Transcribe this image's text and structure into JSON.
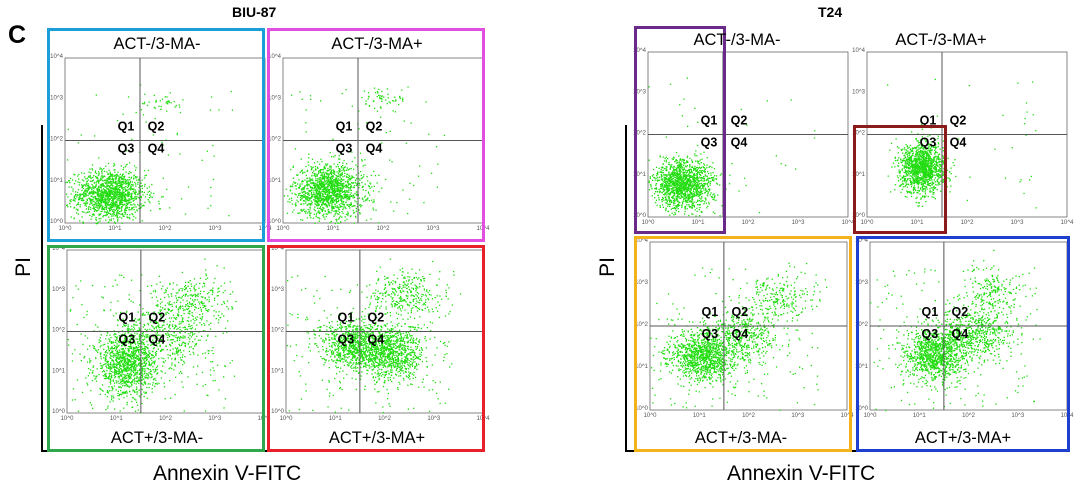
{
  "figure": {
    "panel_letter": "C",
    "y_axis_label": "PI",
    "x_axis_label": "Annexin V-FITC",
    "frame_colors": {
      "blue": "#1b9fd8",
      "magenta": "#e24ee0",
      "green": "#2ea84a",
      "red": "#e8202a",
      "purple": "#6a2a8a",
      "darkred": "#8b1a1a",
      "yellow": "#f4b31b",
      "royalblue": "#1f3fd1"
    },
    "dot_color": "#22dd11"
  },
  "chart_data": [
    {
      "type": "scatter",
      "group": "BIU-87",
      "condition": "ACT-/3-MA-",
      "xlim_log10": [
        0,
        4
      ],
      "ylim_log10": [
        0,
        4
      ],
      "x_scale": "log",
      "y_scale": "log",
      "x_ticks": [
        "10^0",
        "10^1",
        "10^2",
        "10^3",
        "10^4"
      ],
      "y_ticks": [
        "10^0",
        "10^1",
        "10^2",
        "10^3",
        "10^4"
      ],
      "quadrant_gate_log10": {
        "x": 1.5,
        "y": 2.0
      },
      "quadrants": [
        "Q1",
        "Q2",
        "Q3",
        "Q4"
      ],
      "clusters": [
        {
          "center_log10": [
            0.9,
            0.7
          ],
          "spread_log10": [
            0.35,
            0.3
          ],
          "points": 1400
        },
        {
          "center_log10": [
            1.9,
            2.9
          ],
          "spread_log10": [
            0.25,
            0.15
          ],
          "points": 40
        }
      ],
      "scatter_noise_points": 60
    },
    {
      "type": "scatter",
      "group": "BIU-87",
      "condition": "ACT-/3-MA+",
      "xlim_log10": [
        0,
        4
      ],
      "ylim_log10": [
        0,
        4
      ],
      "x_scale": "log",
      "y_scale": "log",
      "x_ticks": [
        "10^0",
        "10^1",
        "10^2",
        "10^3",
        "10^4"
      ],
      "y_ticks": [
        "10^0",
        "10^1",
        "10^2",
        "10^3",
        "10^4"
      ],
      "quadrant_gate_log10": {
        "x": 1.5,
        "y": 2.0
      },
      "quadrants": [
        "Q1",
        "Q2",
        "Q3",
        "Q4"
      ],
      "clusters": [
        {
          "center_log10": [
            0.9,
            0.8
          ],
          "spread_log10": [
            0.35,
            0.32
          ],
          "points": 1400
        },
        {
          "center_log10": [
            2.0,
            3.0
          ],
          "spread_log10": [
            0.25,
            0.15
          ],
          "points": 60
        }
      ],
      "scatter_noise_points": 70
    },
    {
      "type": "scatter",
      "group": "BIU-87",
      "condition": "ACT+/3-MA-",
      "xlim_log10": [
        0,
        4
      ],
      "ylim_log10": [
        0,
        4
      ],
      "x_scale": "log",
      "y_scale": "log",
      "x_ticks": [
        "10^0",
        "10^1",
        "10^2",
        "10^3",
        "10^4"
      ],
      "y_ticks": [
        "10^0",
        "10^1",
        "10^2",
        "10^3",
        "10^4"
      ],
      "quadrant_gate_log10": {
        "x": 1.5,
        "y": 2.0
      },
      "quadrants": [
        "Q1",
        "Q2",
        "Q3",
        "Q4"
      ],
      "clusters": [
        {
          "center_log10": [
            1.2,
            1.2
          ],
          "spread_log10": [
            0.3,
            0.4
          ],
          "points": 1100
        },
        {
          "center_log10": [
            2.0,
            1.9
          ],
          "spread_log10": [
            0.5,
            0.4
          ],
          "points": 500
        },
        {
          "center_log10": [
            2.5,
            2.8
          ],
          "spread_log10": [
            0.4,
            0.3
          ],
          "points": 250
        }
      ],
      "scatter_noise_points": 150
    },
    {
      "type": "scatter",
      "group": "BIU-87",
      "condition": "ACT+/3-MA+",
      "xlim_log10": [
        0,
        4
      ],
      "ylim_log10": [
        0,
        4
      ],
      "x_scale": "log",
      "y_scale": "log",
      "x_ticks": [
        "10^0",
        "10^1",
        "10^2",
        "10^3",
        "10^4"
      ],
      "y_ticks": [
        "10^0",
        "10^1",
        "10^2",
        "10^3",
        "10^4"
      ],
      "quadrant_gate_log10": {
        "x": 1.5,
        "y": 2.0
      },
      "quadrants": [
        "Q1",
        "Q2",
        "Q3",
        "Q4"
      ],
      "clusters": [
        {
          "center_log10": [
            1.3,
            1.7
          ],
          "spread_log10": [
            0.3,
            0.3
          ],
          "points": 700
        },
        {
          "center_log10": [
            2.1,
            1.5
          ],
          "spread_log10": [
            0.35,
            0.35
          ],
          "points": 1000
        },
        {
          "center_log10": [
            2.4,
            2.9
          ],
          "spread_log10": [
            0.35,
            0.3
          ],
          "points": 300
        }
      ],
      "scatter_noise_points": 180
    },
    {
      "type": "scatter",
      "group": "T24",
      "condition": "ACT-/3-MA-",
      "xlim_log10": [
        0,
        4
      ],
      "ylim_log10": [
        0,
        4
      ],
      "x_scale": "log",
      "y_scale": "log",
      "x_ticks": [
        "10^0",
        "10^1",
        "10^2",
        "10^3",
        "10^4"
      ],
      "y_ticks": [
        "10^0",
        "10^1",
        "10^2",
        "10^3",
        "10^4"
      ],
      "quadrant_gate_log10": {
        "x": 1.5,
        "y": 2.0
      },
      "quadrants": [
        "Q1",
        "Q2",
        "Q3",
        "Q4"
      ],
      "clusters": [
        {
          "center_log10": [
            0.7,
            0.8
          ],
          "spread_log10": [
            0.3,
            0.3
          ],
          "points": 1400
        }
      ],
      "scatter_noise_points": 30
    },
    {
      "type": "scatter",
      "group": "T24",
      "condition": "ACT-/3-MA+",
      "xlim_log10": [
        0,
        4
      ],
      "ylim_log10": [
        0,
        4
      ],
      "x_scale": "log",
      "y_scale": "log",
      "x_ticks": [
        "10^0",
        "10^1",
        "10^2",
        "10^3",
        "10^4"
      ],
      "y_ticks": [
        "10^0",
        "10^1",
        "10^2",
        "10^3",
        "10^4"
      ],
      "quadrant_gate_log10": {
        "x": 1.5,
        "y": 2.0
      },
      "quadrants": [
        "Q1",
        "Q2",
        "Q3",
        "Q4"
      ],
      "clusters": [
        {
          "center_log10": [
            1.1,
            1.2
          ],
          "spread_log10": [
            0.22,
            0.3
          ],
          "points": 1300
        }
      ],
      "scatter_noise_points": 30
    },
    {
      "type": "scatter",
      "group": "T24",
      "condition": "ACT+/3-MA-",
      "xlim_log10": [
        0,
        4
      ],
      "ylim_log10": [
        0,
        4
      ],
      "x_scale": "log",
      "y_scale": "log",
      "x_ticks": [
        "10^0",
        "10^1",
        "10^2",
        "10^3",
        "10^4"
      ],
      "y_ticks": [
        "10^0",
        "10^1",
        "10^2",
        "10^3",
        "10^4"
      ],
      "quadrant_gate_log10": {
        "x": 1.5,
        "y": 2.0
      },
      "quadrants": [
        "Q1",
        "Q2",
        "Q3",
        "Q4"
      ],
      "clusters": [
        {
          "center_log10": [
            1.1,
            1.3
          ],
          "spread_log10": [
            0.35,
            0.3
          ],
          "points": 1100
        },
        {
          "center_log10": [
            1.9,
            1.8
          ],
          "spread_log10": [
            0.35,
            0.3
          ],
          "points": 400
        },
        {
          "center_log10": [
            2.6,
            2.7
          ],
          "spread_log10": [
            0.35,
            0.3
          ],
          "points": 200
        }
      ],
      "scatter_noise_points": 150
    },
    {
      "type": "scatter",
      "group": "T24",
      "condition": "ACT+/3-MA+",
      "xlim_log10": [
        0,
        4
      ],
      "ylim_log10": [
        0,
        4
      ],
      "x_scale": "log",
      "y_scale": "log",
      "x_ticks": [
        "10^0",
        "10^1",
        "10^2",
        "10^3",
        "10^4"
      ],
      "y_ticks": [
        "10^0",
        "10^1",
        "10^2",
        "10^3",
        "10^4"
      ],
      "quadrant_gate_log10": {
        "x": 1.5,
        "y": 2.0
      },
      "quadrants": [
        "Q1",
        "Q2",
        "Q3",
        "Q4"
      ],
      "clusters": [
        {
          "center_log10": [
            1.3,
            1.3
          ],
          "spread_log10": [
            0.3,
            0.3
          ],
          "points": 1000
        },
        {
          "center_log10": [
            2.1,
            1.8
          ],
          "spread_log10": [
            0.4,
            0.3
          ],
          "points": 600
        },
        {
          "center_log10": [
            2.5,
            2.8
          ],
          "spread_log10": [
            0.3,
            0.3
          ],
          "points": 200
        }
      ],
      "scatter_noise_points": 180
    }
  ]
}
